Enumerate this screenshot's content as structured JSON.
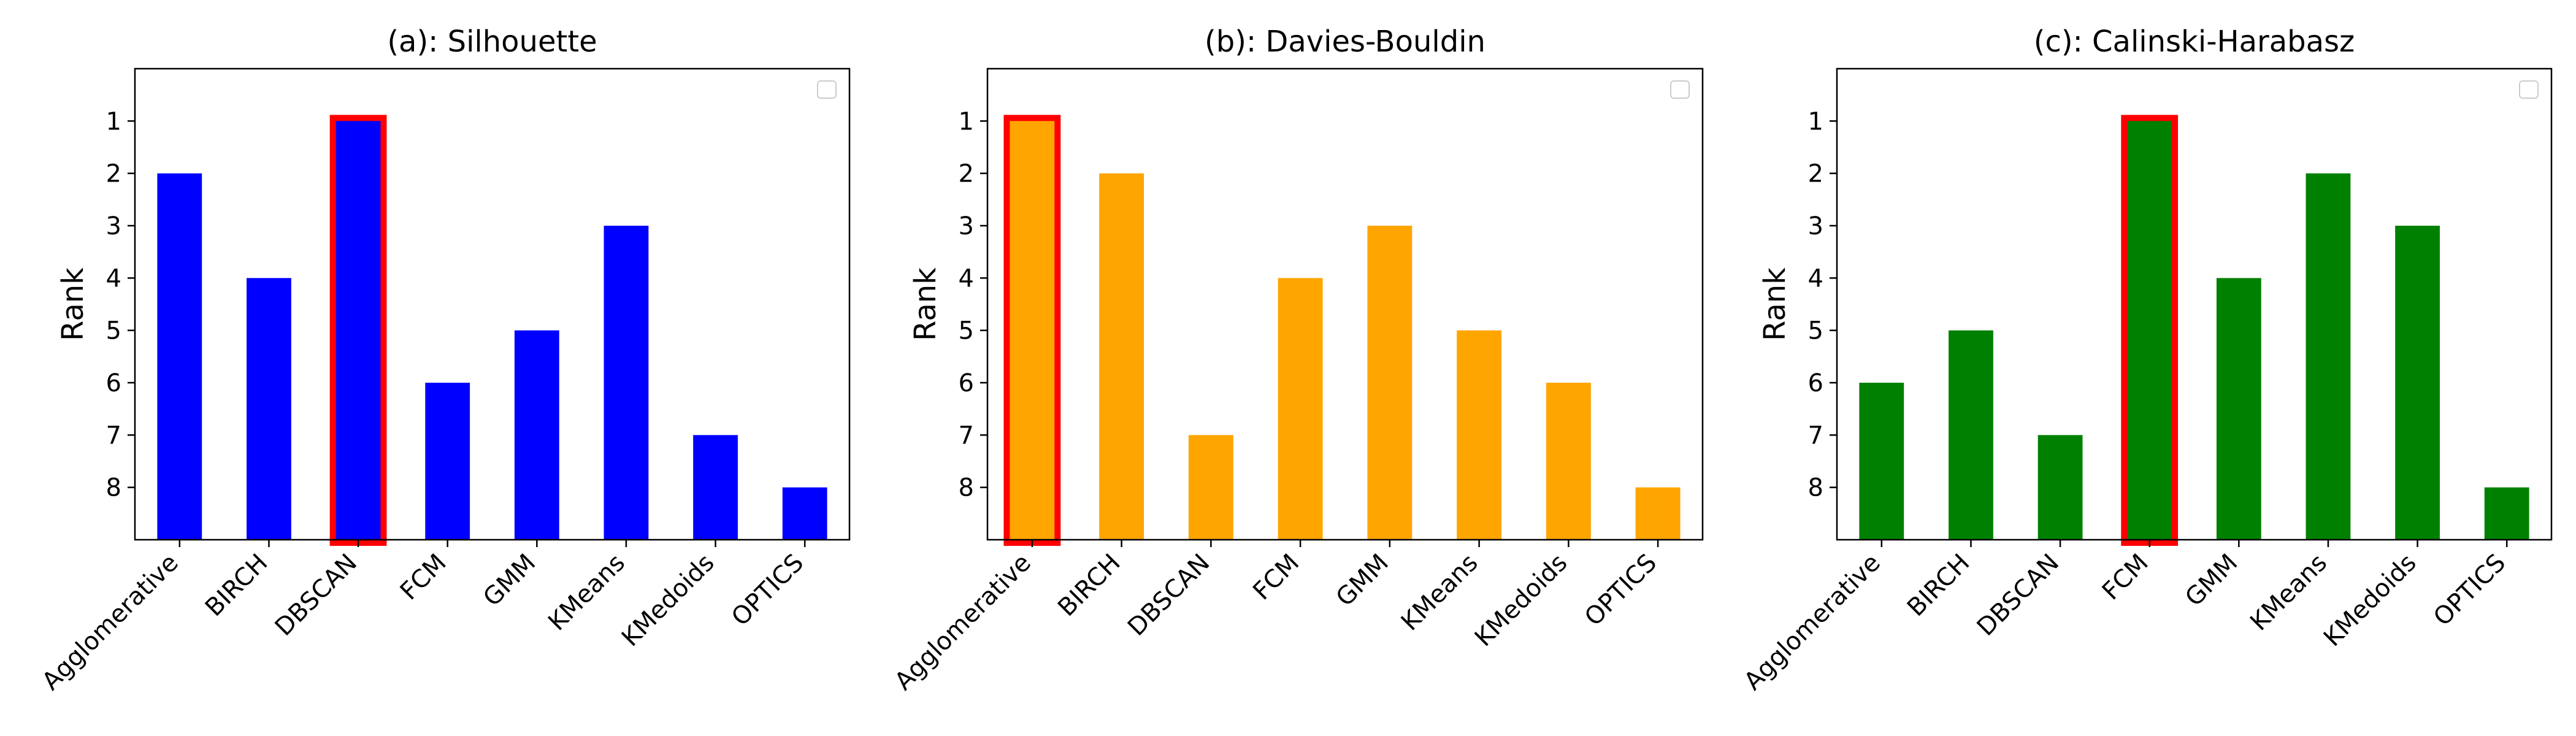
{
  "chart_data": [
    {
      "type": "bar",
      "title": "(a): Silhouette",
      "ylabel": "Rank",
      "categories": [
        "Agglomerative",
        "BIRCH",
        "DBSCAN",
        "FCM",
        "GMM",
        "KMeans",
        "KMedoids",
        "OPTICS"
      ],
      "values": [
        2,
        4,
        1,
        6,
        5,
        3,
        7,
        8
      ],
      "y_ticks": [
        "1",
        "2",
        "3",
        "4",
        "5",
        "6",
        "7",
        "8"
      ],
      "ylim": [
        0,
        9
      ],
      "y_inverted": true,
      "bar_color": "#0000ff",
      "highlight": "DBSCAN",
      "highlight_color": "#ff0000",
      "legend": "top-right, empty"
    },
    {
      "type": "bar",
      "title": "(b): Davies-Bouldin",
      "ylabel": "Rank",
      "categories": [
        "Agglomerative",
        "BIRCH",
        "DBSCAN",
        "FCM",
        "GMM",
        "KMeans",
        "KMedoids",
        "OPTICS"
      ],
      "values": [
        1,
        2,
        7,
        4,
        3,
        5,
        6,
        8
      ],
      "y_ticks": [
        "1",
        "2",
        "3",
        "4",
        "5",
        "6",
        "7",
        "8"
      ],
      "ylim": [
        0,
        9
      ],
      "y_inverted": true,
      "bar_color": "#ffa500",
      "highlight": "Agglomerative",
      "highlight_color": "#ff0000",
      "legend": "top-right, empty"
    },
    {
      "type": "bar",
      "title": "(c): Calinski-Harabasz",
      "ylabel": "Rank",
      "categories": [
        "Agglomerative",
        "BIRCH",
        "DBSCAN",
        "FCM",
        "GMM",
        "KMeans",
        "KMedoids",
        "OPTICS"
      ],
      "values": [
        6,
        5,
        7,
        1,
        4,
        2,
        3,
        8
      ],
      "y_ticks": [
        "1",
        "2",
        "3",
        "4",
        "5",
        "6",
        "7",
        "8"
      ],
      "ylim": [
        0,
        9
      ],
      "y_inverted": true,
      "bar_color": "#008000",
      "highlight": "FCM",
      "highlight_color": "#ff0000",
      "legend": "top-right, empty"
    }
  ]
}
